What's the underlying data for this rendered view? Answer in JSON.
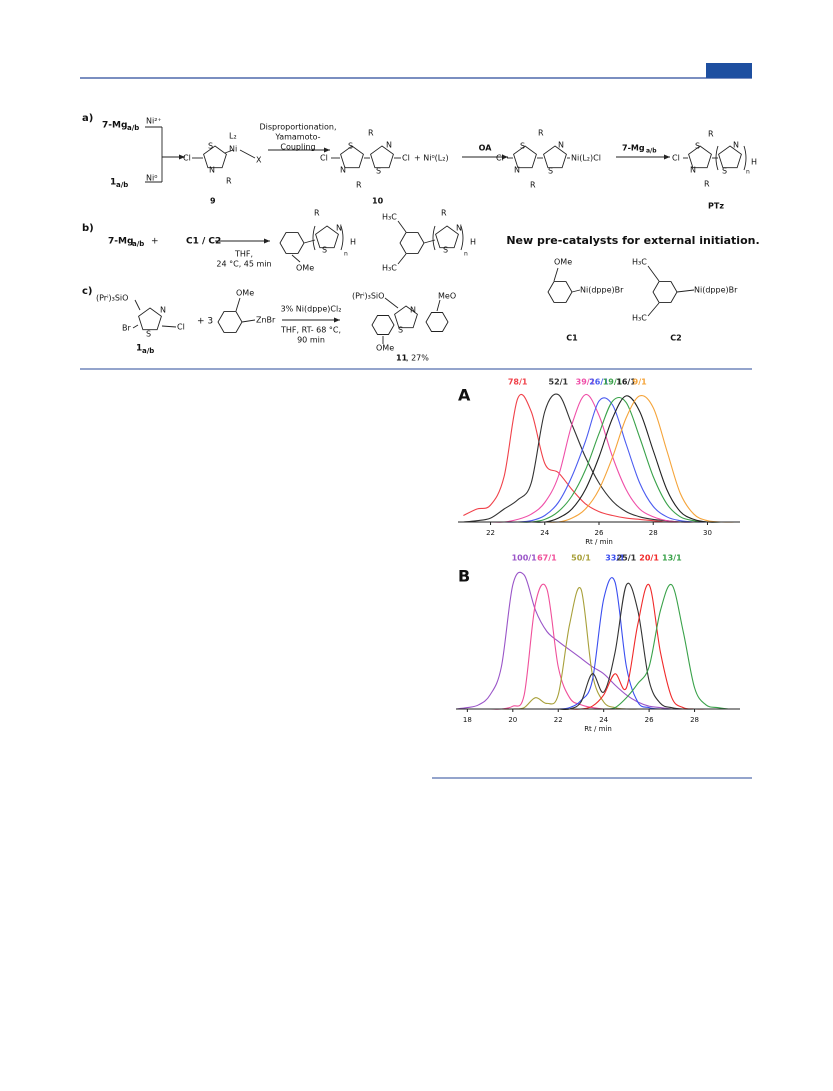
{
  "scheme": {
    "texts": [
      "a)",
      "7-Mg",
      "a/b",
      "Ni²⁺",
      "1",
      "a/b",
      "Ni⁰",
      "Cl",
      "S",
      "N",
      "L₂",
      "Ni",
      "X",
      "R",
      "9",
      "Disproportionation,",
      "Yamamoto-",
      "Coupling",
      "Cl",
      "S",
      "N",
      "R",
      "N",
      "S",
      "R",
      "Cl",
      "10",
      "+ Ni⁰(L₂)",
      "OA",
      "Cl",
      "S",
      "N",
      "R",
      "N",
      "S",
      "R",
      "Ni(L₂)Cl",
      "7-Mg",
      "a/b",
      "Cl",
      "S",
      "N",
      "R",
      "R",
      "N",
      "S",
      "n",
      "H",
      "PTz",
      "b)",
      "7-Mg",
      "a/b",
      "+",
      "C1 / C2",
      "THF,",
      "24 °C, 45 min",
      "R",
      "N",
      "S",
      "n",
      "H",
      "OMe",
      "H₃C",
      "H₃C",
      "R",
      "N",
      "S",
      "n",
      "H",
      "New pre-catalysts for external initiation.",
      "OMe",
      "Ni(dppe)Br",
      "C1",
      "H₃C",
      "H₃C",
      "Ni(dppe)Br",
      "C2",
      "c)",
      "(Prⁱ)₃SiO",
      "N",
      "Br",
      "S",
      "Cl",
      "1",
      "a/b",
      "+ 3",
      "OMe",
      "ZnBr",
      "3% Ni(dppe)Cl₂",
      "THF, RT- 68 °C,",
      "90 min",
      "(Prⁱ)₃SiO",
      "N",
      "S",
      "MeO",
      "OMe",
      "11",
      ", 27%"
    ]
  },
  "chart_data": [
    {
      "type": "line",
      "panel": "A",
      "xlabel": "Rt / min",
      "xlim": [
        20.8,
        31.2
      ],
      "ylim": [
        0,
        1
      ],
      "xticks": [
        22,
        24,
        26,
        28,
        30
      ],
      "x": [
        21,
        21.5,
        22,
        22.5,
        23,
        23.5,
        24,
        24.5,
        25,
        25.5,
        26,
        26.5,
        27,
        27.5,
        28,
        28.5,
        29,
        29.5,
        30,
        30.5,
        31
      ],
      "series": [
        {
          "name": "78/1",
          "color": "#f0424a",
          "values": [
            0.05,
            0.1,
            0.13,
            0.35,
            0.95,
            0.85,
            0.45,
            0.38,
            0.25,
            0.14,
            0.08,
            0.05,
            0.03,
            0.02,
            0.01,
            0,
            0,
            0,
            0,
            0,
            0
          ]
        },
        {
          "name": "52/1",
          "color": "#333333",
          "values": [
            0,
            0.01,
            0.03,
            0.1,
            0.17,
            0.3,
            0.85,
            0.98,
            0.75,
            0.5,
            0.3,
            0.16,
            0.08,
            0.04,
            0.02,
            0.01,
            0,
            0,
            0,
            0,
            0
          ]
        },
        {
          "name": "39/1",
          "color": "#ef4fa8",
          "values": [
            0,
            0,
            0,
            0,
            0.02,
            0.06,
            0.15,
            0.35,
            0.75,
            0.98,
            0.82,
            0.5,
            0.25,
            0.1,
            0.04,
            0.01,
            0,
            0,
            0,
            0,
            0
          ]
        },
        {
          "name": "26/1",
          "color": "#4b5cf0",
          "values": [
            0,
            0,
            0,
            0,
            0,
            0.01,
            0.05,
            0.15,
            0.35,
            0.62,
            0.93,
            0.9,
            0.6,
            0.3,
            0.12,
            0.04,
            0.01,
            0,
            0,
            0,
            0
          ]
        },
        {
          "name": "19/1",
          "color": "#3aa24a",
          "values": [
            0,
            0,
            0,
            0,
            0,
            0,
            0.02,
            0.08,
            0.2,
            0.4,
            0.68,
            0.93,
            0.92,
            0.65,
            0.35,
            0.14,
            0.04,
            0.01,
            0,
            0,
            0
          ]
        },
        {
          "name": "16/1",
          "color": "#222222",
          "values": [
            0,
            0,
            0,
            0,
            0,
            0,
            0,
            0.03,
            0.1,
            0.25,
            0.5,
            0.8,
            0.97,
            0.85,
            0.55,
            0.25,
            0.08,
            0.02,
            0,
            0,
            0
          ]
        },
        {
          "name": "9/1",
          "color": "#f5a43a",
          "values": [
            0,
            0,
            0,
            0,
            0,
            0,
            0,
            0,
            0.03,
            0.1,
            0.25,
            0.5,
            0.8,
            0.97,
            0.88,
            0.55,
            0.22,
            0.06,
            0.01,
            0,
            0
          ]
        }
      ]
    },
    {
      "type": "line",
      "panel": "B",
      "xlabel": "Rt / min",
      "xlim": [
        17.5,
        30
      ],
      "ylim": [
        0,
        1
      ],
      "xticks": [
        18,
        20,
        22,
        24,
        26,
        28
      ],
      "x": [
        17.5,
        18,
        18.5,
        19,
        19.5,
        20,
        20.5,
        21,
        21.5,
        22,
        22.5,
        23,
        23.5,
        24,
        24.5,
        25,
        25.5,
        26,
        26.5,
        27,
        27.5,
        28,
        28.5,
        29,
        29.5
      ],
      "series": [
        {
          "name": "100/1",
          "color": "#9a55c8",
          "values": [
            0,
            0.01,
            0.03,
            0.1,
            0.3,
            0.88,
            0.95,
            0.7,
            0.55,
            0.48,
            0.42,
            0.36,
            0.3,
            0.25,
            0.17,
            0.1,
            0.05,
            0.02,
            0.01,
            0,
            0,
            0,
            0,
            0,
            0
          ]
        },
        {
          "name": "67/1",
          "color": "#f0509a",
          "values": [
            0,
            0,
            0,
            0,
            0,
            0.02,
            0.1,
            0.75,
            0.85,
            0.3,
            0.08,
            0.03,
            0.01,
            0,
            0,
            0,
            0,
            0,
            0,
            0,
            0,
            0,
            0,
            0,
            0
          ]
        },
        {
          "name": "50/1",
          "color": "#a8a03a",
          "values": [
            0,
            0,
            0,
            0,
            0,
            0,
            0.01,
            0.08,
            0.04,
            0.1,
            0.6,
            0.85,
            0.25,
            0.05,
            0.01,
            0,
            0,
            0,
            0,
            0,
            0,
            0,
            0,
            0,
            0
          ]
        },
        {
          "name": "33/1",
          "color": "#3a4ef0",
          "values": [
            0,
            0,
            0,
            0,
            0,
            0,
            0,
            0,
            0,
            0,
            0.01,
            0.06,
            0.2,
            0.78,
            0.9,
            0.3,
            0.05,
            0.01,
            0,
            0,
            0,
            0,
            0,
            0,
            0
          ]
        },
        {
          "name": "25/1",
          "color": "#333333",
          "values": [
            0,
            0,
            0,
            0,
            0,
            0,
            0,
            0,
            0,
            0,
            0,
            0.05,
            0.25,
            0.12,
            0.4,
            0.88,
            0.7,
            0.2,
            0.04,
            0.01,
            0,
            0,
            0,
            0,
            0
          ]
        },
        {
          "name": "20/1",
          "color": "#f02a2a",
          "values": [
            0,
            0,
            0,
            0,
            0,
            0,
            0,
            0,
            0,
            0,
            0,
            0,
            0.02,
            0.1,
            0.25,
            0.15,
            0.6,
            0.88,
            0.4,
            0.08,
            0.01,
            0,
            0,
            0,
            0
          ]
        },
        {
          "name": "13/1",
          "color": "#3aa24a",
          "values": [
            0,
            0,
            0,
            0,
            0,
            0,
            0,
            0,
            0,
            0,
            0,
            0,
            0,
            0,
            0.01,
            0.08,
            0.18,
            0.3,
            0.7,
            0.88,
            0.55,
            0.15,
            0.03,
            0.01,
            0
          ]
        }
      ]
    }
  ]
}
